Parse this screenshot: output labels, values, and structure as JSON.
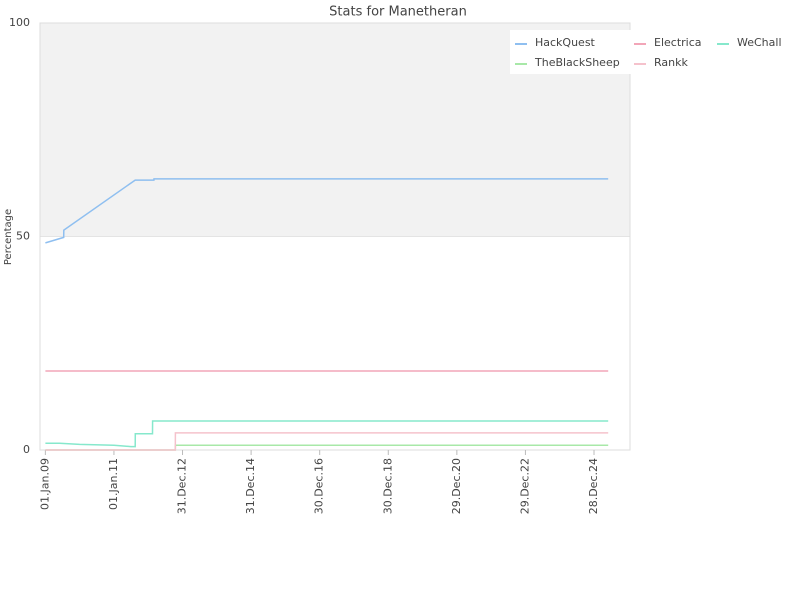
{
  "chart_data": {
    "type": "line",
    "title": "Stats for Manetheran",
    "y_label": "Percentage",
    "xlim": [
      "05.Nov.08",
      "15.Jan.26"
    ],
    "xticks": [
      "01.Jan.09",
      "01.Jan.11",
      "31.Dec.12",
      "31.Dec.14",
      "30.Dec.16",
      "30.Dec.18",
      "29.Dec.20",
      "29.Dec.22",
      "28.Dec.24"
    ],
    "ylim": [
      0,
      100
    ],
    "yticks": [
      0,
      50,
      100
    ],
    "legend": "top-right",
    "series": [
      {
        "name": "HackQuest",
        "color": "#8fbff0",
        "x": [
          "01.Jan.09",
          "15.Jul.09",
          "16.Jul.09",
          "15.Aug.11",
          "01.Mar.12",
          "02.Mar.12",
          "28.May.25"
        ],
        "values": [
          48.5,
          49.8,
          51.5,
          63.2,
          63.2,
          63.5,
          63.5
        ]
      },
      {
        "name": "Electrica",
        "color": "#f2a6b8",
        "x": [
          "01.Jan.09",
          "28.May.25"
        ],
        "values": [
          18.5,
          18.5
        ]
      },
      {
        "name": "WeChall",
        "color": "#86e8cc",
        "x": [
          "01.Jan.09",
          "01.Jun.09",
          "01.Jan.10",
          "01.Jan.11",
          "01.Jul.11",
          "15.Aug.11",
          "16.Aug.11",
          "15.Feb.12",
          "16.Feb.12",
          "28.May.25"
        ],
        "values": [
          1.6,
          1.6,
          1.3,
          1.1,
          0.8,
          0.8,
          3.8,
          3.8,
          6.8,
          6.8
        ]
      },
      {
        "name": "TheBlackSheep",
        "color": "#a8e8a8",
        "x": [
          "01.Jan.09",
          "15.Oct.12",
          "16.Oct.12",
          "28.May.25"
        ],
        "values": [
          0,
          0,
          1.1,
          1.1
        ]
      },
      {
        "name": "Rankk",
        "color": "#f5c2cc",
        "x": [
          "01.Jan.09",
          "15.Oct.12",
          "16.Oct.12",
          "28.May.25"
        ],
        "values": [
          0,
          0,
          4,
          4
        ]
      }
    ]
  }
}
